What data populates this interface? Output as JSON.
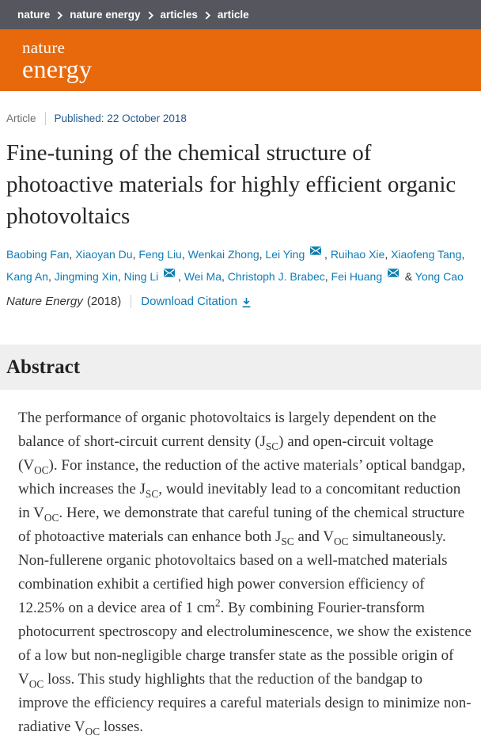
{
  "colors": {
    "topbar_bg": "#55565e",
    "banner_orange": "#e8690b",
    "link_blue": "#0f7cb4",
    "published_blue": "#23598f",
    "band_gray": "#efefef",
    "body_text": "#333333"
  },
  "breadcrumb": {
    "items": [
      "nature",
      "nature energy",
      "articles",
      "article"
    ]
  },
  "banner": {
    "logo_line1": "nature",
    "logo_line2": "energy"
  },
  "meta": {
    "type_label": "Article",
    "published": "Published: 22 October 2018"
  },
  "title": "Fine-tuning of the chemical structure of photoactive materials for highly efficient organic photovoltaics",
  "authors": {
    "separator": ", ",
    "last_separator": " & ",
    "list": [
      {
        "name": "Baobing Fan",
        "email": false
      },
      {
        "name": "Xiaoyan Du",
        "email": false
      },
      {
        "name": "Feng Liu",
        "email": false
      },
      {
        "name": "Wenkai Zhong",
        "email": false
      },
      {
        "name": "Lei Ying",
        "email": true
      },
      {
        "name": "Ruihao Xie",
        "email": false
      },
      {
        "name": "Xiaofeng Tang",
        "email": false
      },
      {
        "name": "Kang An",
        "email": false
      },
      {
        "name": "Jingming Xin",
        "email": false
      },
      {
        "name": "Ning Li",
        "email": true
      },
      {
        "name": "Wei Ma",
        "email": false
      },
      {
        "name": "Christoph J. Brabec",
        "email": false
      },
      {
        "name": "Fei Huang",
        "email": true
      },
      {
        "name": "Yong Cao",
        "email": false
      }
    ]
  },
  "citation": {
    "journal": "Nature Energy",
    "year": "(2018)",
    "download_label": "Download Citation"
  },
  "abstract": {
    "heading": "Abstract",
    "segments": [
      {
        "text": "The performance of organic photovoltaics is largely dependent on the balance of short-circuit current density (J"
      },
      {
        "text": "SC",
        "style": "sub"
      },
      {
        "text": ") and open-circuit voltage (V"
      },
      {
        "text": "OC",
        "style": "sub"
      },
      {
        "text": "). For instance, the reduction of the active materials’ optical bandgap, which increases the J"
      },
      {
        "text": "SC",
        "style": "sub"
      },
      {
        "text": ", would inevitably lead to a concomitant reduction in V"
      },
      {
        "text": "OC",
        "style": "sub"
      },
      {
        "text": ". Here, we demonstrate that careful tuning of the chemical structure of photoactive materials can enhance both J"
      },
      {
        "text": "SC",
        "style": "sub"
      },
      {
        "text": " and V"
      },
      {
        "text": "OC",
        "style": "sub"
      },
      {
        "text": " simultaneously. Non-fullerene organic photovoltaics based on a well-matched materials combination exhibit a certified high power conversion efficiency of 12.25% on a device area of 1 cm"
      },
      {
        "text": "2",
        "style": "sup"
      },
      {
        "text": ". By combining Fourier-transform photocurrent spectroscopy and electroluminescence, we show the existence of a low but non-negligible charge transfer state as the possible origin of V"
      },
      {
        "text": "OC",
        "style": "sub"
      },
      {
        "text": " loss. This study highlights that the reduction of the bandgap to improve the efficiency requires a careful materials design to minimize non-radiative V"
      },
      {
        "text": "OC",
        "style": "sub"
      },
      {
        "text": " losses."
      }
    ]
  }
}
